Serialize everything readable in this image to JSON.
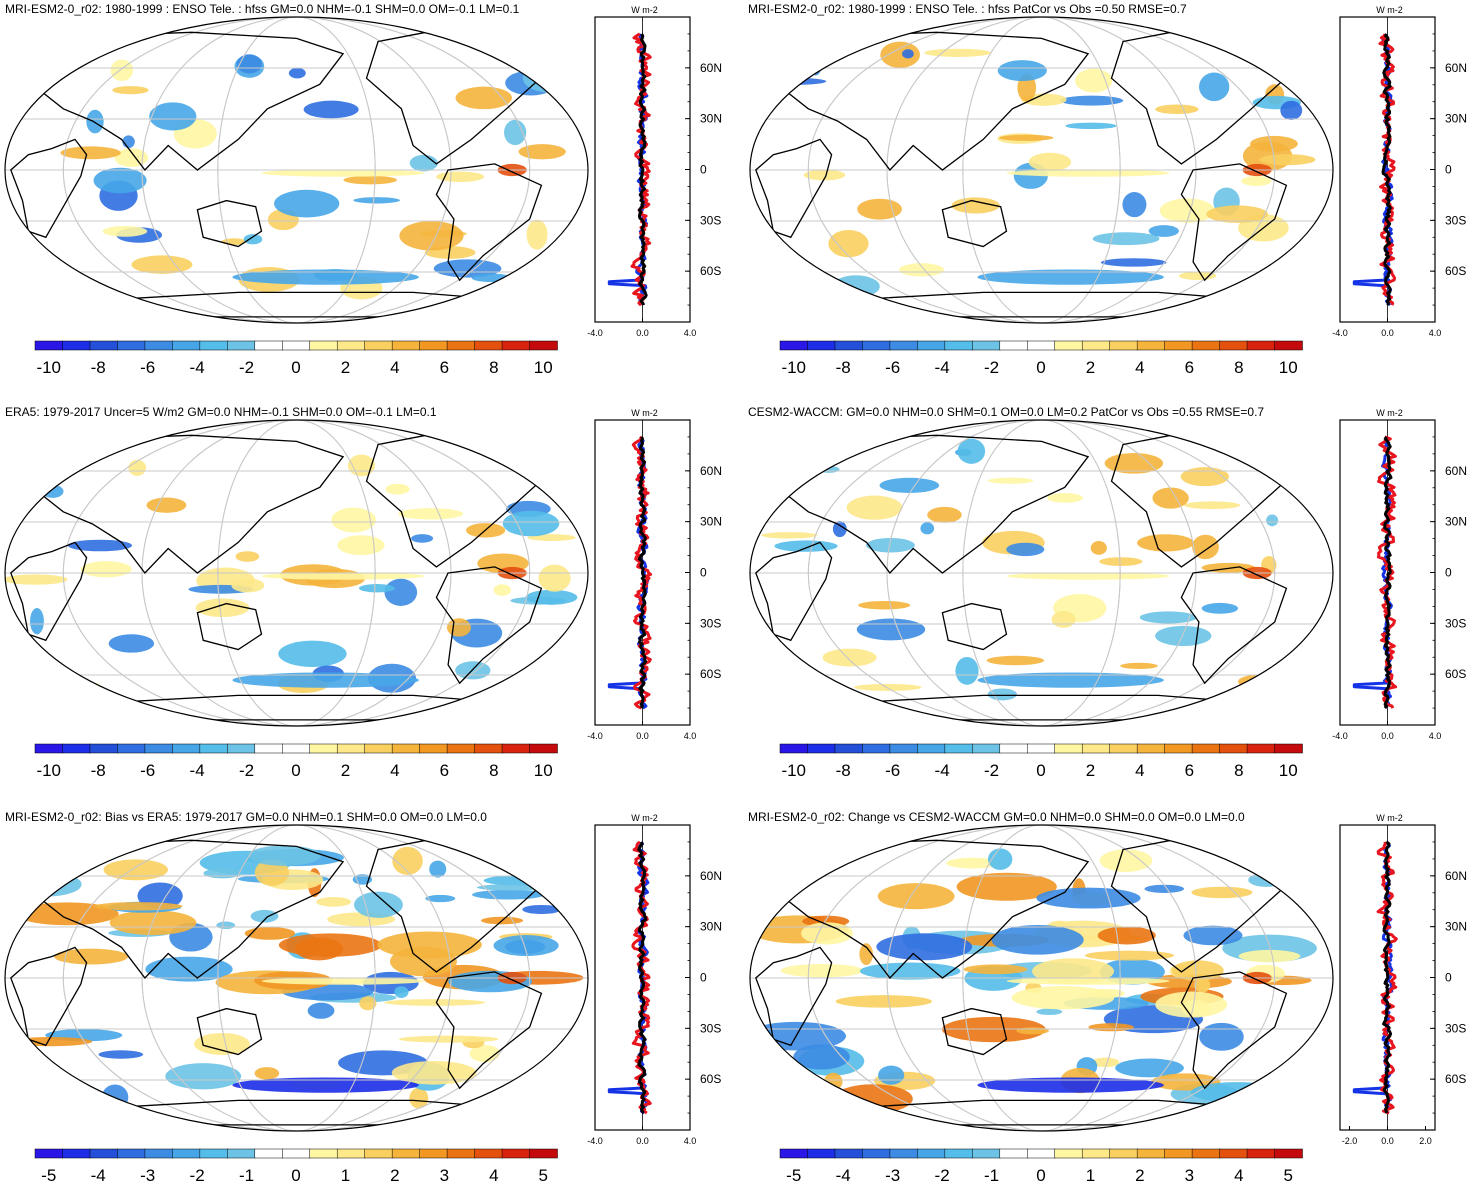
{
  "colors": {
    "model": "#1433e6",
    "obs": "#e8141e",
    "other": "#000000",
    "land": "#000000",
    "grid": "#c8c8c8"
  },
  "palette_diverging": [
    "#2a16e6",
    "#1c2ee8",
    "#244fd8",
    "#2f6ee0",
    "#3c8ce3",
    "#46a6e8",
    "#54bde9",
    "#6cc3e6",
    "#ffffff",
    "#ffffff",
    "#fff6a2",
    "#fde88a",
    "#f9cf5f",
    "#f5b43c",
    "#f19722",
    "#ea7412",
    "#e4500e",
    "#d9230e",
    "#c40a0c"
  ],
  "units_label": "W m-2",
  "chart_data": [
    {
      "type": "map",
      "title": "MRI-ESM2-0_r02: 1980-1999 : ENSO Tele. : hfss GM=0.0 NHM=-0.1 SHM=0.0 OM=-0.1 LM=0.1",
      "colorbar_ticks": [
        "-10",
        "-8",
        "-6",
        "-4",
        "-2",
        "0",
        "2",
        "4",
        "6",
        "8",
        "10"
      ],
      "zonal_mean": {
        "xlim": [
          -4.0,
          4.0
        ],
        "xtick_labels": [
          "-4.0",
          "0.0",
          "4.0"
        ],
        "lat_labels": [
          "60N",
          "30N",
          "0",
          "30S",
          "60S"
        ]
      }
    },
    {
      "type": "map",
      "title": "MRI-ESM2-0_r02: 1980-1999 : ENSO Tele. : hfss PatCor vs Obs =0.50 RMSE=0.7",
      "colorbar_ticks": [
        "-10",
        "-8",
        "-6",
        "-4",
        "-2",
        "0",
        "2",
        "4",
        "6",
        "8",
        "10"
      ],
      "zonal_mean": {
        "xlim": [
          -4.0,
          4.0
        ],
        "xtick_labels": [
          "-4.0",
          "0.0",
          "4.0"
        ],
        "lat_labels": [
          "60N",
          "30N",
          "0",
          "30S",
          "60S"
        ]
      }
    },
    {
      "type": "map",
      "title": "ERA5: 1979-2017 Uncer=5 W/m2 GM=0.0 NHM=-0.1 SHM=0.0 OM=-0.1 LM=0.1",
      "colorbar_ticks": [
        "-10",
        "-8",
        "-6",
        "-4",
        "-2",
        "0",
        "2",
        "4",
        "6",
        "8",
        "10"
      ],
      "zonal_mean": {
        "xlim": [
          -4.0,
          4.0
        ],
        "xtick_labels": [
          "-4.0",
          "0.0",
          "4.0"
        ],
        "lat_labels": [
          "60N",
          "30N",
          "0",
          "30S",
          "60S"
        ]
      }
    },
    {
      "type": "map",
      "title": "CESM2-WACCM: GM=0.0 NHM=0.0 SHM=0.1 OM=0.0 LM=0.2 PatCor vs Obs =0.55 RMSE=0.7",
      "colorbar_ticks": [
        "-10",
        "-8",
        "-6",
        "-4",
        "-2",
        "0",
        "2",
        "4",
        "6",
        "8",
        "10"
      ],
      "zonal_mean": {
        "xlim": [
          -4.0,
          4.0
        ],
        "xtick_labels": [
          "-4.0",
          "0.0",
          "4.0"
        ],
        "lat_labels": [
          "60N",
          "30N",
          "0",
          "30S",
          "60S"
        ]
      }
    },
    {
      "type": "map",
      "title": "MRI-ESM2-0_r02: Bias vs ERA5: 1979-2017 GM=0.0 NHM=0.1 SHM=0.0 OM=0.0 LM=0.0",
      "colorbar_ticks": [
        "-5",
        "-4",
        "-3",
        "-2",
        "-1",
        "0",
        "1",
        "2",
        "3",
        "4",
        "5"
      ],
      "zonal_mean": {
        "xlim": [
          -4.0,
          4.0
        ],
        "xtick_labels": [
          "-4.0",
          "0.0",
          "4.0"
        ],
        "lat_labels": [
          "60N",
          "30N",
          "0",
          "30S",
          "60S"
        ]
      }
    },
    {
      "type": "map",
      "title": "MRI-ESM2-0_r02: Change vs CESM2-WACCM GM=0.0 NHM=0.0 SHM=0.0 OM=0.0 LM=0.0",
      "colorbar_ticks": [
        "-5",
        "-4",
        "-3",
        "-2",
        "-1",
        "0",
        "1",
        "2",
        "3",
        "4",
        "5"
      ],
      "zonal_mean": {
        "xlim": [
          -2.5,
          2.5
        ],
        "xtick_labels": [
          "-2.0",
          "0.0",
          "2.0"
        ],
        "xtick_values": [
          -2.0,
          0.0,
          2.0
        ],
        "lat_labels": [
          "60N",
          "30N",
          "0",
          "30S",
          "60S"
        ]
      }
    }
  ]
}
